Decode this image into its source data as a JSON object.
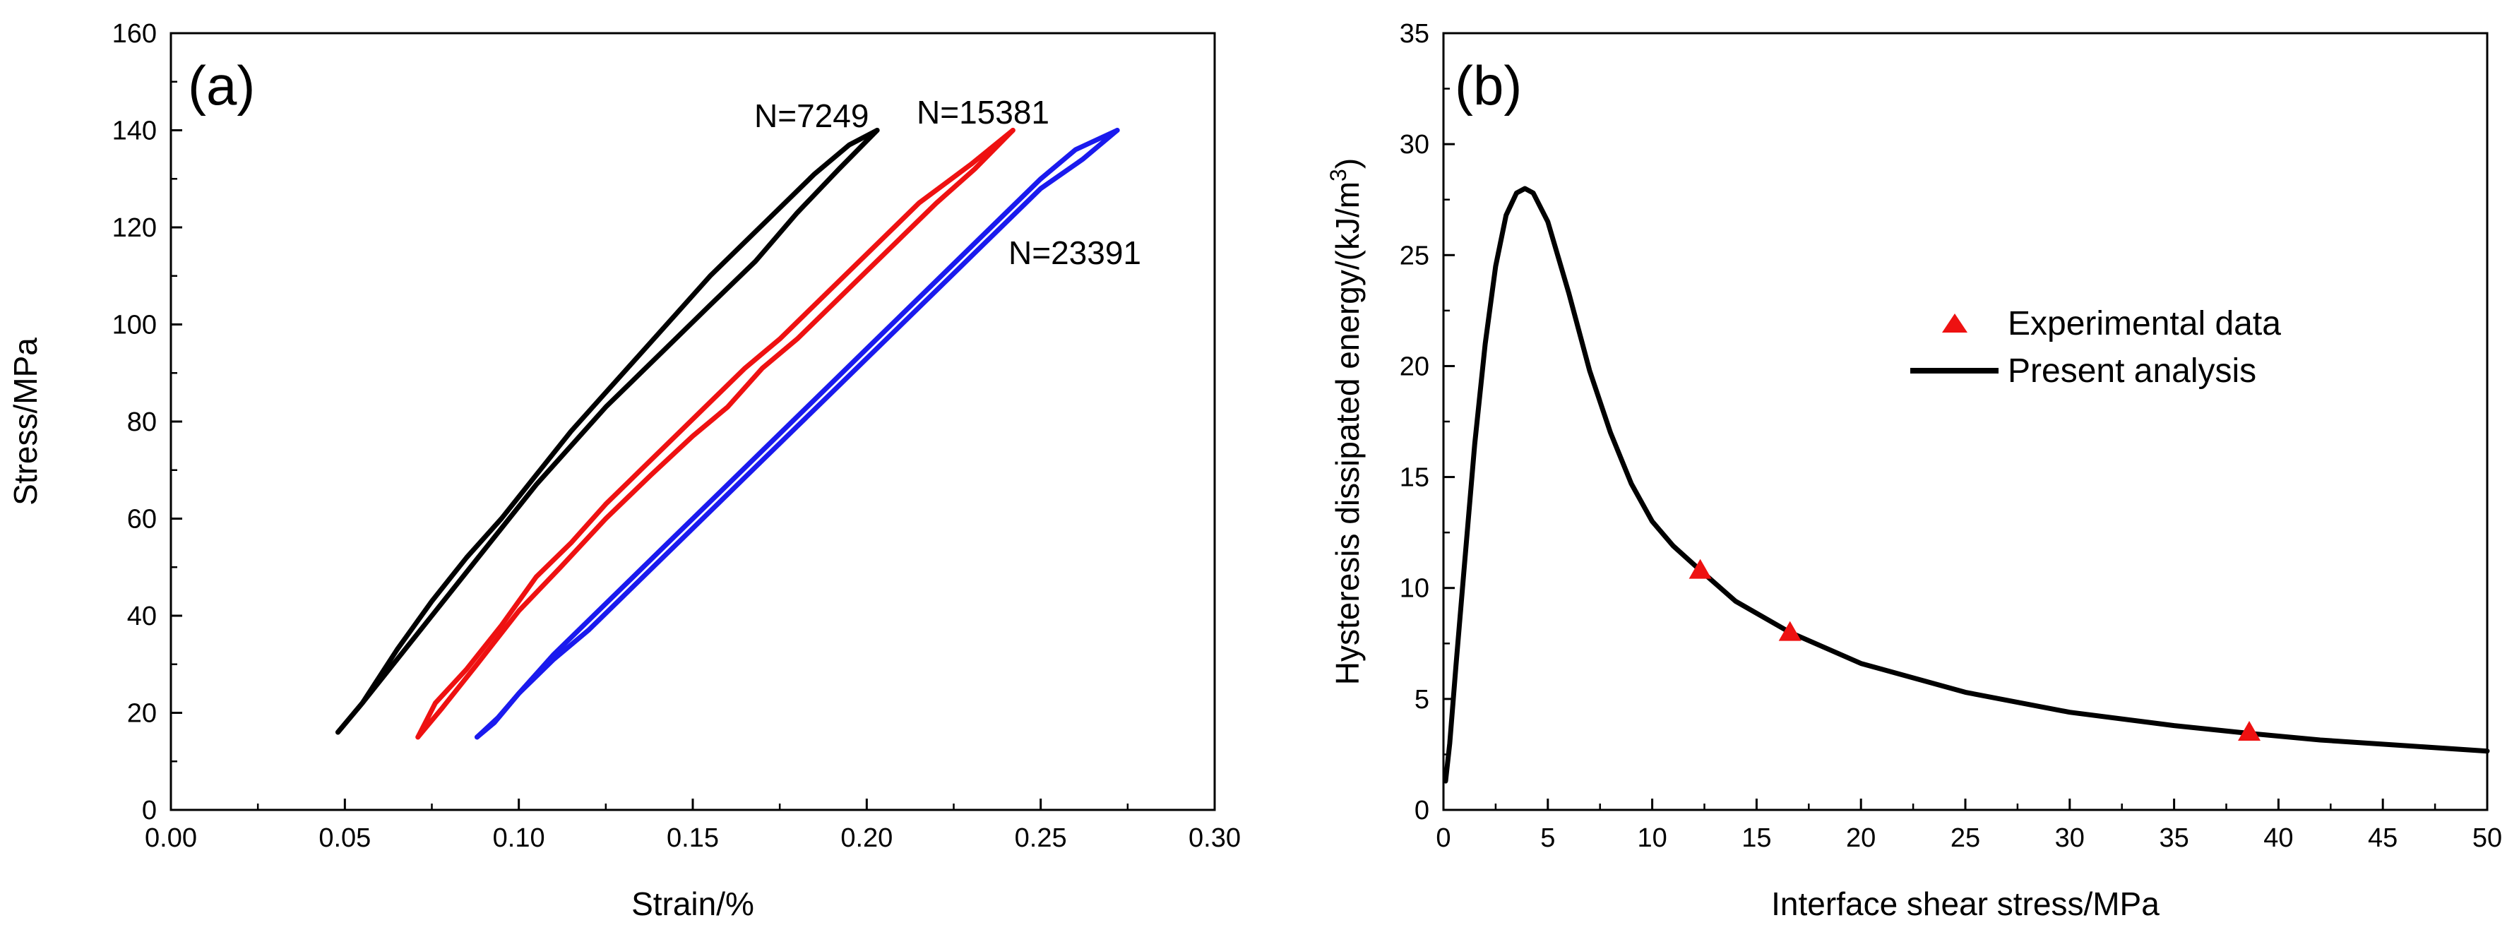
{
  "chart_data": [
    {
      "panel_label": "(a)",
      "type": "line",
      "xlabel": "Strain/%",
      "ylabel": "Stress/MPa",
      "xlim": [
        0.0,
        0.3
      ],
      "ylim": [
        0,
        160
      ],
      "xticks": [
        "0.00",
        "0.05",
        "0.10",
        "0.15",
        "0.20",
        "0.25",
        "0.30"
      ],
      "yticks": [
        "0",
        "20",
        "40",
        "60",
        "80",
        "100",
        "120",
        "140",
        "160"
      ],
      "series": [
        {
          "name": "N=7249",
          "color": "#000000",
          "loading": [
            [
              0.048,
              16
            ],
            [
              0.055,
              22
            ],
            [
              0.065,
              33
            ],
            [
              0.075,
              43
            ],
            [
              0.085,
              52
            ],
            [
              0.095,
              60
            ],
            [
              0.105,
              69
            ],
            [
              0.115,
              78
            ],
            [
              0.125,
              86
            ],
            [
              0.135,
              94
            ],
            [
              0.145,
              102
            ],
            [
              0.155,
              110
            ],
            [
              0.165,
              117
            ],
            [
              0.175,
              124
            ],
            [
              0.185,
              131
            ],
            [
              0.195,
              137
            ],
            [
              0.203,
              140
            ]
          ],
          "unloading": [
            [
              0.203,
              140
            ],
            [
              0.192,
              132
            ],
            [
              0.18,
              123
            ],
            [
              0.168,
              113
            ],
            [
              0.155,
              104
            ],
            [
              0.145,
              97
            ],
            [
              0.135,
              90
            ],
            [
              0.125,
              83
            ],
            [
              0.115,
              75
            ],
            [
              0.105,
              67
            ],
            [
              0.095,
              58
            ],
            [
              0.085,
              49
            ],
            [
              0.075,
              40
            ],
            [
              0.065,
              31
            ],
            [
              0.055,
              22
            ],
            [
              0.048,
              16
            ]
          ]
        },
        {
          "name": "N=15381",
          "color": "#ee1111",
          "loading": [
            [
              0.071,
              15
            ],
            [
              0.078,
              21
            ],
            [
              0.088,
              30
            ],
            [
              0.1,
              41
            ],
            [
              0.112,
              50
            ],
            [
              0.125,
              60
            ],
            [
              0.138,
              69
            ],
            [
              0.15,
              77
            ],
            [
              0.16,
              83
            ],
            [
              0.17,
              91
            ],
            [
              0.18,
              97
            ],
            [
              0.19,
              104
            ],
            [
              0.2,
              111
            ],
            [
              0.21,
              118
            ],
            [
              0.22,
              125
            ],
            [
              0.231,
              132
            ],
            [
              0.242,
              140
            ]
          ],
          "unloading": [
            [
              0.242,
              140
            ],
            [
              0.23,
              133
            ],
            [
              0.215,
              125
            ],
            [
              0.205,
              118
            ],
            [
              0.195,
              111
            ],
            [
              0.185,
              104
            ],
            [
              0.175,
              97
            ],
            [
              0.165,
              91
            ],
            [
              0.155,
              84
            ],
            [
              0.145,
              77
            ],
            [
              0.135,
              70
            ],
            [
              0.125,
              63
            ],
            [
              0.115,
              55
            ],
            [
              0.105,
              48
            ],
            [
              0.095,
              38
            ],
            [
              0.085,
              29
            ],
            [
              0.076,
              22
            ],
            [
              0.071,
              15
            ]
          ]
        },
        {
          "name": "N=23391",
          "color": "#1a1aee",
          "loading": [
            [
              0.088,
              15
            ],
            [
              0.093,
              18
            ],
            [
              0.1,
              24
            ],
            [
              0.11,
              32
            ],
            [
              0.12,
              39
            ],
            [
              0.13,
              46
            ],
            [
              0.14,
              53
            ],
            [
              0.15,
              60
            ],
            [
              0.16,
              67
            ],
            [
              0.17,
              74
            ],
            [
              0.18,
              81
            ],
            [
              0.19,
              88
            ],
            [
              0.2,
              95
            ],
            [
              0.21,
              102
            ],
            [
              0.22,
              109
            ],
            [
              0.23,
              116
            ],
            [
              0.24,
              123
            ],
            [
              0.25,
              130
            ],
            [
              0.26,
              136
            ],
            [
              0.272,
              140
            ]
          ],
          "unloading": [
            [
              0.272,
              140
            ],
            [
              0.262,
              134
            ],
            [
              0.25,
              128
            ],
            [
              0.24,
              121
            ],
            [
              0.23,
              114
            ],
            [
              0.22,
              107
            ],
            [
              0.21,
              100
            ],
            [
              0.2,
              93
            ],
            [
              0.19,
              86
            ],
            [
              0.18,
              79
            ],
            [
              0.17,
              72
            ],
            [
              0.16,
              65
            ],
            [
              0.15,
              58
            ],
            [
              0.14,
              51
            ],
            [
              0.13,
              44
            ],
            [
              0.12,
              37
            ],
            [
              0.11,
              31
            ],
            [
              0.1,
              24
            ],
            [
              0.094,
              19
            ],
            [
              0.088,
              15
            ]
          ]
        }
      ],
      "annotations": [
        "N=7249",
        "N=15381",
        "N=23391"
      ]
    },
    {
      "panel_label": "(b)",
      "type": "line",
      "xlabel": "Interface shear stress/MPa",
      "ylabel": "Hysteresis dissipated energy/(kJ/m",
      "ylabel_superscript": "3",
      "ylabel_suffix": ")",
      "xlim": [
        0,
        50
      ],
      "ylim": [
        0,
        35
      ],
      "xticks": [
        "0",
        "5",
        "10",
        "15",
        "20",
        "25",
        "30",
        "35",
        "40",
        "45",
        "50"
      ],
      "yticks": [
        "0",
        "5",
        "10",
        "15",
        "20",
        "25",
        "30",
        "35"
      ],
      "series": [
        {
          "name": "Experimental data",
          "marker": "triangle",
          "color": "#ee1111",
          "points": [
            [
              12.3,
              10.8
            ],
            [
              16.6,
              8.0
            ],
            [
              38.6,
              3.5
            ]
          ]
        },
        {
          "name": "Present analysis",
          "marker": "line",
          "color": "#000000",
          "points": [
            [
              0.1,
              1.3
            ],
            [
              0.3,
              3
            ],
            [
              0.6,
              6.5
            ],
            [
              1.0,
              11
            ],
            [
              1.5,
              16.5
            ],
            [
              2.0,
              21
            ],
            [
              2.5,
              24.5
            ],
            [
              3.0,
              26.8
            ],
            [
              3.5,
              27.8
            ],
            [
              3.9,
              28.0
            ],
            [
              4.3,
              27.8
            ],
            [
              5.0,
              26.5
            ],
            [
              6.0,
              23.3
            ],
            [
              7.0,
              19.8
            ],
            [
              8.0,
              17.0
            ],
            [
              9.0,
              14.7
            ],
            [
              10.0,
              13.0
            ],
            [
              11.0,
              11.9
            ],
            [
              12.3,
              10.8
            ],
            [
              14.0,
              9.4
            ],
            [
              16.6,
              8.0
            ],
            [
              20.0,
              6.6
            ],
            [
              25.0,
              5.3
            ],
            [
              30.0,
              4.4
            ],
            [
              35.0,
              3.8
            ],
            [
              38.6,
              3.45
            ],
            [
              42.0,
              3.15
            ],
            [
              46.0,
              2.9
            ],
            [
              50.0,
              2.65
            ]
          ]
        }
      ],
      "legend": {
        "position": "center-right",
        "entries": [
          "Experimental data",
          "Present analysis"
        ]
      }
    }
  ]
}
